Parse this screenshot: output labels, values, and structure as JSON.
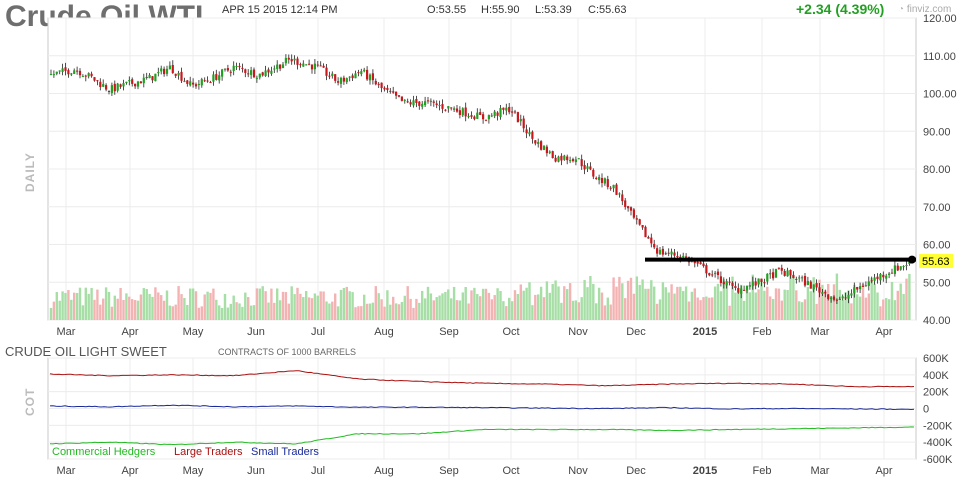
{
  "header": {
    "symbol": "Crude Oil WTI",
    "datetime": "APR 15 2015 12:14 PM",
    "open": "O:53.55",
    "high": "H:55.90",
    "low": "L:53.39",
    "close": "C:55.63",
    "change": "+2.34 (4.39%)",
    "logo": "finviz.com"
  },
  "colors": {
    "up": "#22a022",
    "down": "#c8181e",
    "price_label_bg": "#ffff33",
    "commercial": "#22bb22",
    "large": "#aa1111",
    "small": "#1a2a99"
  },
  "chart_data": [
    {
      "type": "candlestick",
      "interval_label": "DAILY",
      "x_labels": [
        "Mar",
        "Apr",
        "May",
        "Jun",
        "Jul",
        "Aug",
        "Sep",
        "Oct",
        "Nov",
        "Dec",
        "2015",
        "Feb",
        "Mar",
        "Apr"
      ],
      "y_ticks": [
        "120.00",
        "110.00",
        "100.00",
        "90.00",
        "80.00",
        "70.00",
        "60.00",
        "50.00",
        "40.00"
      ],
      "ylim": [
        40,
        120
      ],
      "last_price_label": "55.63",
      "resistance_level": 56.0,
      "price_anchors": [
        [
          "Mar",
          105
        ],
        [
          "Mar",
          106.5
        ],
        [
          "Mar",
          104
        ],
        [
          "Mar",
          101
        ],
        [
          "Apr",
          102.5
        ],
        [
          "Apr",
          104
        ],
        [
          "Apr",
          107
        ],
        [
          "May",
          102
        ],
        [
          "May",
          104
        ],
        [
          "May",
          107
        ],
        [
          "Jun",
          105
        ],
        [
          "Jun",
          109
        ],
        [
          "Jul",
          107
        ],
        [
          "Jul",
          103
        ],
        [
          "Jul",
          106
        ],
        [
          "Aug",
          101
        ],
        [
          "Aug",
          97.5
        ],
        [
          "Aug",
          97.5
        ],
        [
          "Sep",
          96
        ],
        [
          "Sep",
          93.5
        ],
        [
          "Oct",
          96
        ],
        [
          "Oct",
          88
        ],
        [
          "Oct",
          83
        ],
        [
          "Nov",
          83
        ],
        [
          "Nov",
          78
        ],
        [
          "Nov",
          75
        ],
        [
          "Dec",
          66
        ],
        [
          "Dec",
          58
        ],
        [
          "Dec",
          57
        ],
        [
          "2015",
          53
        ],
        [
          "2015",
          48
        ],
        [
          "Feb",
          50
        ],
        [
          "Feb",
          53
        ],
        [
          "Feb",
          51
        ],
        [
          "Mar",
          48
        ],
        [
          "Mar",
          45
        ],
        [
          "Mar",
          49
        ],
        [
          "Apr",
          52
        ],
        [
          "Apr",
          55.63
        ]
      ]
    },
    {
      "type": "line",
      "title": "CRUDE OIL LIGHT SWEET",
      "subtitle": "CONTRACTS OF 1000 BARRELS",
      "side_label": "COT",
      "x_labels": [
        "Mar",
        "Apr",
        "May",
        "Jun",
        "Jul",
        "Aug",
        "Sep",
        "Oct",
        "Nov",
        "Dec",
        "2015",
        "Feb",
        "Mar",
        "Apr"
      ],
      "y_ticks": [
        "600K",
        "400K",
        "200K",
        "0",
        "-200K",
        "-400K",
        "-600K"
      ],
      "ylim": [
        -600000,
        600000
      ],
      "series": [
        {
          "name": "Commercial Hedgers",
          "values": [
            -420000,
            -400000,
            -430000,
            -400000,
            -420000,
            -300000,
            -300000,
            -250000,
            -250000,
            -250000,
            -260000,
            -250000,
            -240000,
            -230000,
            -220000
          ]
        },
        {
          "name": "Large Traders",
          "values": [
            410000,
            390000,
            400000,
            390000,
            450000,
            350000,
            320000,
            300000,
            290000,
            270000,
            290000,
            300000,
            290000,
            260000,
            260000
          ]
        },
        {
          "name": "Small Traders",
          "values": [
            30000,
            20000,
            40000,
            20000,
            30000,
            15000,
            15000,
            10000,
            5000,
            0,
            10000,
            -5000,
            0,
            -5000,
            -10000
          ]
        }
      ]
    }
  ]
}
